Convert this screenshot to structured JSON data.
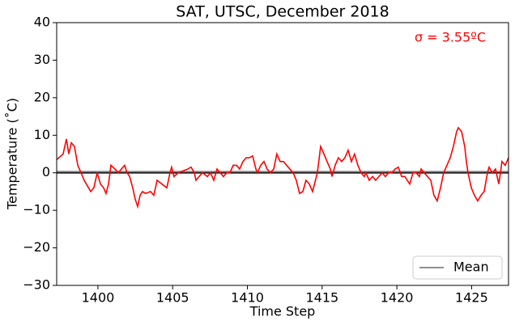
{
  "chart_data": {
    "type": "line",
    "title": "SAT, UTSC, December 2018",
    "xlabel": "Time Step",
    "ylabel": "Temperature (˚C)",
    "annotation": {
      "text": "σ = 3.55ºC",
      "color": "#ff0000"
    },
    "xlim": [
      1397.24,
      1427.47
    ],
    "ylim": [
      -30,
      40
    ],
    "xticks": [
      1400,
      1405,
      1410,
      1415,
      1420,
      1425
    ],
    "yticks": [
      {
        "value": -30,
        "label": "−30"
      },
      {
        "value": -20,
        "label": "−20"
      },
      {
        "value": -10,
        "label": "−10"
      },
      0,
      10,
      20,
      30,
      40
    ],
    "grid": false,
    "legend_loc": "lower right",
    "reference_lines": [
      {
        "value": 0,
        "color": "#000000"
      },
      {
        "name": "Mean",
        "value": 0.3,
        "color": "#808080"
      }
    ],
    "x": [
      1397.24,
      1397.67,
      1397.89,
      1398.05,
      1398.22,
      1398.43,
      1398.65,
      1398.87,
      1399.08,
      1399.52,
      1399.73,
      1399.95,
      1400.17,
      1400.38,
      1400.54,
      1400.71,
      1400.87,
      1401.14,
      1401.36,
      1401.57,
      1401.79,
      1401.95,
      1402.12,
      1402.33,
      1402.49,
      1402.66,
      1402.82,
      1402.98,
      1403.2,
      1403.52,
      1403.74,
      1403.96,
      1404.28,
      1404.61,
      1404.82,
      1404.93,
      1405.09,
      1405.37,
      1405.69,
      1406.02,
      1406.23,
      1406.45,
      1406.56,
      1406.77,
      1406.99,
      1407.32,
      1407.53,
      1407.75,
      1407.97,
      1408.18,
      1408.4,
      1408.62,
      1408.83,
      1409.05,
      1409.27,
      1409.48,
      1409.7,
      1409.92,
      1410.13,
      1410.35,
      1410.57,
      1410.67,
      1410.89,
      1411.11,
      1411.32,
      1411.54,
      1411.76,
      1411.97,
      1412.19,
      1412.41,
      1412.62,
      1412.84,
      1413.06,
      1413.27,
      1413.49,
      1413.71,
      1413.92,
      1414.14,
      1414.36,
      1414.68,
      1414.9,
      1415.12,
      1415.33,
      1415.55,
      1415.66,
      1415.87,
      1416.09,
      1416.31,
      1416.52,
      1416.74,
      1416.96,
      1417.17,
      1417.39,
      1417.61,
      1417.82,
      1417.93,
      1418.15,
      1418.37,
      1418.58,
      1418.8,
      1419.02,
      1419.23,
      1419.45,
      1419.67,
      1419.88,
      1420.1,
      1420.32,
      1420.53,
      1420.86,
      1421.08,
      1421.29,
      1421.51,
      1421.62,
      1421.83,
      1422.27,
      1422.48,
      1422.7,
      1422.92,
      1423.13,
      1423.35,
      1423.57,
      1423.78,
      1424.0,
      1424.11,
      1424.33,
      1424.54,
      1424.65,
      1424.76,
      1424.98,
      1425.19,
      1425.41,
      1425.63,
      1425.84,
      1426.06,
      1426.17,
      1426.38,
      1426.6,
      1426.82,
      1426.93,
      1427.03,
      1427.25,
      1427.47
    ],
    "series": [
      {
        "color": "#ff0000",
        "values": [
          3.5,
          5,
          9,
          5,
          8,
          7,
          2,
          0,
          -2,
          -5,
          -4,
          0,
          -3,
          -4,
          -5.5,
          -3,
          2,
          1,
          0,
          1,
          2,
          0,
          -1,
          -4,
          -7,
          -9,
          -6,
          -5,
          -5.5,
          -5,
          -6,
          -2,
          -3,
          -4,
          0,
          1.5,
          -1,
          0,
          0.5,
          1,
          1.5,
          0,
          -2,
          -1,
          0,
          -1,
          0,
          -2,
          1,
          0,
          -1,
          0,
          0,
          2,
          2,
          1,
          3,
          4,
          4,
          4.5,
          1,
          0,
          2,
          3,
          1,
          0,
          1,
          5,
          3,
          3,
          2,
          1,
          0,
          -2,
          -5.5,
          -5,
          -2,
          -3,
          -5,
          0,
          7,
          5,
          3,
          1,
          -1,
          2,
          4,
          3,
          4,
          6,
          3,
          5,
          2,
          0,
          -1,
          0,
          -2,
          -1,
          -2,
          -1,
          0,
          -1,
          0,
          0,
          1,
          1.5,
          -1,
          -1,
          -3,
          0,
          0,
          -1,
          1,
          0,
          -2,
          -6,
          -7.5,
          -4,
          0,
          2,
          4,
          7,
          11,
          12,
          11,
          7,
          3,
          0,
          -4,
          -6,
          -7.5,
          -6,
          -5,
          0,
          1.5,
          0,
          1,
          -3,
          0,
          3,
          2,
          4
        ]
      }
    ]
  }
}
